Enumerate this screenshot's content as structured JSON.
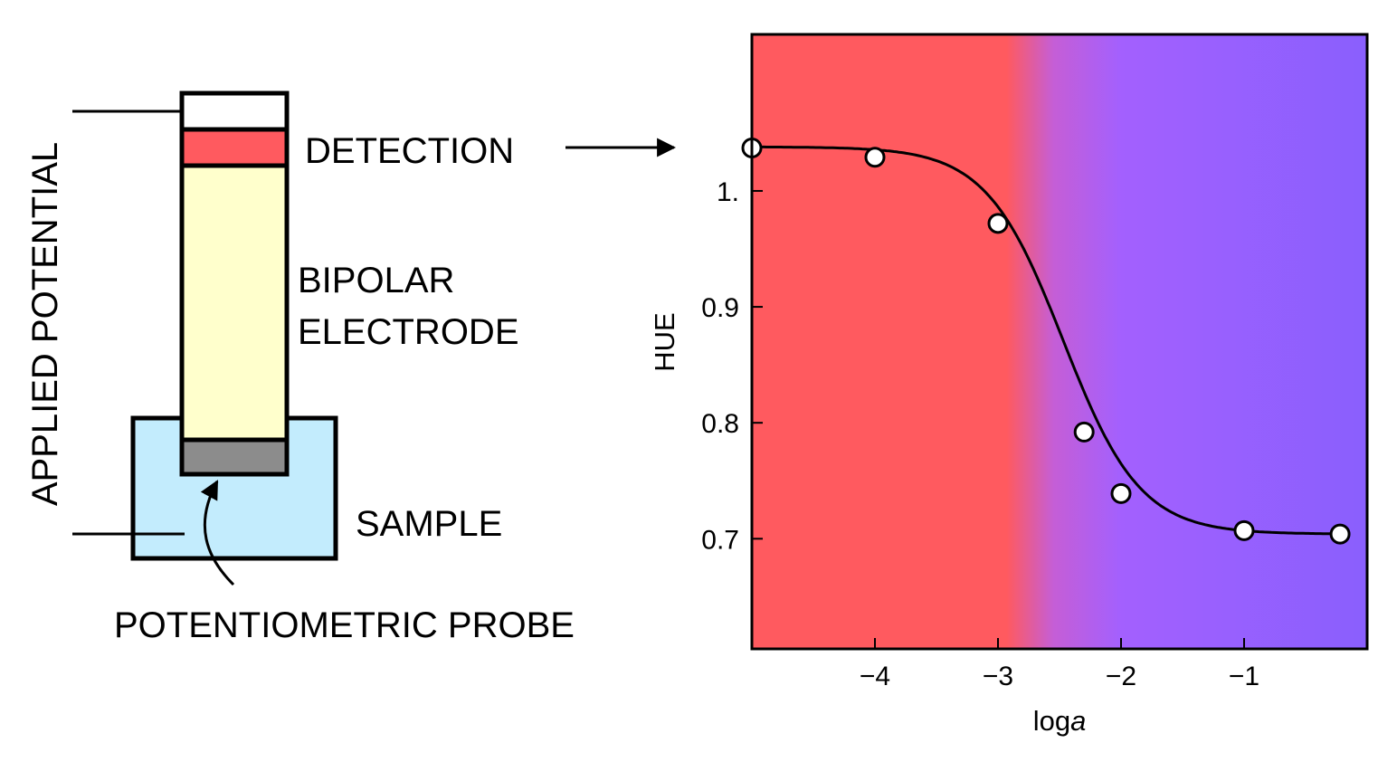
{
  "diagram": {
    "applied_potential_label": "APPLIED POTENTIAL",
    "detection_label": "DETECTION",
    "bipolar_electrode_line1": "BIPOLAR",
    "bipolar_electrode_line2": "ELECTRODE",
    "sample_label": "SAMPLE",
    "probe_label": "POTENTIOMETRIC PROBE",
    "colors": {
      "detection_zone": "#ff5a5f",
      "electrode_body": "#ffffcc",
      "probe_tip": "#8c8c8c",
      "sample_liquid": "#c3ecfd",
      "outline": "#000000"
    }
  },
  "chart_data": {
    "type": "scatter",
    "title": "",
    "xlabel_prefix": "log",
    "xlabel_var": "a",
    "ylabel": "HUE",
    "xlim": [
      -5,
      0
    ],
    "ylim": [
      0.605,
      1.135
    ],
    "xticks": [
      -4,
      -3,
      -2,
      -1
    ],
    "xtick_labels": [
      "−4",
      "−3",
      "−2",
      "−1"
    ],
    "yticks": [
      0.7,
      0.8,
      0.9,
      1.0
    ],
    "ytick_labels": [
      "0.7",
      "0.8",
      "0.9",
      "1."
    ],
    "series": [
      {
        "name": "HUE",
        "x": [
          -5,
          -4,
          -3,
          -2.3,
          -2,
          -1,
          -0.22
        ],
        "y": [
          1.037,
          1.029,
          0.972,
          0.792,
          0.739,
          0.707,
          0.704
        ]
      }
    ],
    "fit_curve": {
      "model": "sigmoid",
      "top": 1.038,
      "bottom": 0.704,
      "x50": -2.47,
      "slope": 3.2
    },
    "background_gradient": [
      {
        "log_a": -5,
        "color": "#ff5a5f"
      },
      {
        "log_a": -2.93,
        "color": "#ff5a5f"
      },
      {
        "log_a": -2.55,
        "color": "#c55ed6"
      },
      {
        "log_a": -2.0,
        "color": "#a360fe"
      },
      {
        "log_a": 0,
        "color": "#8a5ffd"
      }
    ],
    "grid": false,
    "legend": "none"
  }
}
